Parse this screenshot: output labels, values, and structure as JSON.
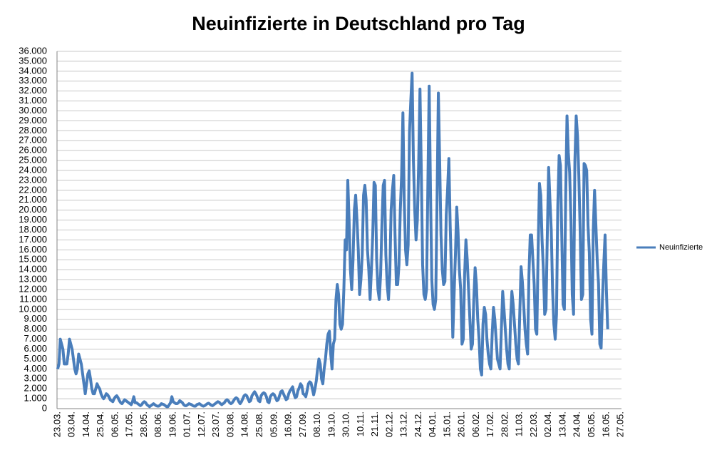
{
  "chart_data": {
    "type": "line",
    "title": "Neuinfizierte in Deutschland pro Tag",
    "categories": [
      "23.03.",
      null,
      null,
      null,
      null,
      null,
      null,
      null,
      null,
      null,
      null,
      "03.04.",
      null,
      null,
      null,
      null,
      null,
      null,
      null,
      null,
      null,
      null,
      "14.04.",
      null,
      null,
      null,
      null,
      null,
      null,
      null,
      null,
      null,
      null,
      "25.04.",
      null,
      null,
      null,
      null,
      null,
      null,
      null,
      null,
      null,
      null,
      "06.05.",
      null,
      null,
      null,
      null,
      null,
      null,
      null,
      null,
      null,
      null,
      "17.05.",
      null,
      null,
      null,
      null,
      null,
      null,
      null,
      null,
      null,
      null,
      "28.05.",
      null,
      null,
      null,
      null,
      null,
      null,
      null,
      null,
      null,
      null,
      "08.06.",
      null,
      null,
      null,
      null,
      null,
      null,
      null,
      null,
      null,
      null,
      "19.06.",
      null,
      null,
      null,
      null,
      null,
      null,
      null,
      null,
      null,
      null,
      "01.07.",
      null,
      null,
      null,
      null,
      null,
      null,
      null,
      null,
      null,
      null,
      "12.07.",
      null,
      null,
      null,
      null,
      null,
      null,
      null,
      null,
      null,
      null,
      "23.07.",
      null,
      null,
      null,
      null,
      null,
      null,
      null,
      null,
      null,
      null,
      "03.08.",
      null,
      null,
      null,
      null,
      null,
      null,
      null,
      null,
      null,
      null,
      "14.08.",
      null,
      null,
      null,
      null,
      null,
      null,
      null,
      null,
      null,
      null,
      "25.08.",
      null,
      null,
      null,
      null,
      null,
      null,
      null,
      null,
      null,
      null,
      "05.09.",
      null,
      null,
      null,
      null,
      null,
      null,
      null,
      null,
      null,
      null,
      "16.09.",
      null,
      null,
      null,
      null,
      null,
      null,
      null,
      null,
      null,
      null,
      "27.09.",
      null,
      null,
      null,
      null,
      null,
      null,
      null,
      null,
      null,
      null,
      "08.10.",
      null,
      null,
      null,
      null,
      null,
      null,
      null,
      null,
      null,
      null,
      "19.10.",
      null,
      null,
      null,
      null,
      null,
      null,
      null,
      null,
      null,
      null,
      "30.10.",
      null,
      null,
      null,
      null,
      null,
      null,
      null,
      null,
      null,
      null,
      "10.11.",
      null,
      null,
      null,
      null,
      null,
      null,
      null,
      null,
      null,
      null,
      "21.11.",
      null,
      null,
      null,
      null,
      null,
      null,
      null,
      null,
      null,
      null,
      "02.12.",
      null,
      null,
      null,
      null,
      null,
      null,
      null,
      null,
      null,
      null,
      "13.12.",
      null,
      null,
      null,
      null,
      null,
      null,
      null,
      null,
      null,
      null,
      "24.12.",
      null,
      null,
      null,
      null,
      null,
      null,
      null,
      null,
      null,
      null,
      "04.01.",
      null,
      null,
      null,
      null,
      null,
      null,
      null,
      null,
      null,
      null,
      "15.01.",
      null,
      null,
      null,
      null,
      null,
      null,
      null,
      null,
      null,
      null,
      "26.01.",
      null,
      null,
      null,
      null,
      null,
      null,
      null,
      null,
      null,
      null,
      "06.02.",
      null,
      null,
      null,
      null,
      null,
      null,
      null,
      null,
      null,
      null,
      "17.02.",
      null,
      null,
      null,
      null,
      null,
      null,
      null,
      null,
      null,
      null,
      "28.02.",
      null,
      null,
      null,
      null,
      null,
      null,
      null,
      null,
      null,
      null,
      "11.03.",
      null,
      null,
      null,
      null,
      null,
      null,
      null,
      null,
      null,
      null,
      "22.03.",
      null,
      null,
      null,
      null,
      null,
      null,
      null,
      null,
      null,
      null,
      "02.04.",
      null,
      null,
      null,
      null,
      null,
      null,
      null,
      null,
      null,
      null,
      "13.04.",
      null,
      null,
      null,
      null,
      null,
      null,
      null,
      null,
      null,
      null,
      "24.04.",
      null,
      null,
      null,
      null,
      null,
      null,
      null,
      null,
      null,
      null,
      "05.05.",
      null,
      null,
      null,
      null,
      null,
      null,
      null,
      null,
      null,
      null,
      "16.05.",
      null,
      null,
      null,
      null,
      null,
      null,
      null,
      null,
      null,
      null,
      "27.05."
    ],
    "series": [
      {
        "name": "Neuinfizierte",
        "color": "#4a7ebb",
        "values": [
          4000,
          4500,
          7000,
          6500,
          6000,
          4500,
          4500,
          4500,
          5500,
          7000,
          6500,
          6000,
          5000,
          4000,
          3500,
          4000,
          5500,
          5000,
          4500,
          3500,
          2500,
          1500,
          2500,
          3500,
          3800,
          3000,
          2000,
          1500,
          1500,
          2000,
          2500,
          2200,
          2000,
          1500,
          1200,
          1000,
          1200,
          1500,
          1400,
          1200,
          900,
          800,
          700,
          1000,
          1200,
          1300,
          1100,
          800,
          600,
          500,
          700,
          900,
          800,
          700,
          600,
          500,
          400,
          700,
          1200,
          600,
          600,
          500,
          400,
          300,
          400,
          600,
          700,
          600,
          400,
          300,
          200,
          300,
          400,
          500,
          400,
          300,
          250,
          250,
          350,
          500,
          450,
          400,
          300,
          200,
          200,
          400,
          600,
          1200,
          700,
          600,
          500,
          500,
          600,
          800,
          700,
          600,
          400,
          300,
          300,
          400,
          500,
          450,
          400,
          300,
          250,
          250,
          400,
          450,
          500,
          400,
          300,
          250,
          300,
          400,
          500,
          550,
          450,
          350,
          300,
          400,
          500,
          600,
          700,
          650,
          500,
          400,
          500,
          600,
          800,
          900,
          800,
          600,
          500,
          600,
          800,
          1000,
          1100,
          1000,
          700,
          500,
          700,
          1000,
          1300,
          1400,
          1300,
          1000,
          700,
          800,
          1300,
          1500,
          1700,
          1500,
          1200,
          800,
          700,
          1300,
          1500,
          1600,
          1500,
          1200,
          700,
          600,
          1200,
          1400,
          1500,
          1400,
          1100,
          800,
          900,
          1300,
          1700,
          1800,
          1500,
          1200,
          900,
          1000,
          1500,
          1800,
          2000,
          2200,
          1500,
          1100,
          1200,
          1800,
          2100,
          2500,
          2300,
          1500,
          1400,
          1200,
          1800,
          2500,
          2700,
          2600,
          2000,
          1400,
          2000,
          2800,
          4000,
          5000,
          4500,
          3000,
          2500,
          4000,
          5000,
          6500,
          7500,
          7800,
          5500,
          4000,
          6500,
          7000,
          11000,
          12500,
          11500,
          8500,
          8000,
          8500,
          12000,
          17000,
          16000,
          23000,
          19000,
          14000,
          12000,
          15000,
          20000,
          21500,
          19000,
          16000,
          11500,
          13000,
          15500,
          21500,
          22500,
          21000,
          16000,
          14000,
          11000,
          14000,
          17500,
          22800,
          22500,
          15000,
          12000,
          11000,
          13500,
          18500,
          22500,
          23000,
          15500,
          12500,
          11000,
          13500,
          20000,
          22000,
          23500,
          17500,
          12500,
          12500,
          14500,
          20000,
          23500,
          29800,
          21000,
          16000,
          14500,
          16500,
          27800,
          31000,
          33800,
          25000,
          20000,
          17000,
          19000,
          24700,
          32200,
          24000,
          14500,
          11500,
          11000,
          12000,
          22500,
          32500,
          22000,
          13000,
          10500,
          10000,
          11000,
          21000,
          31800,
          25000,
          17500,
          14000,
          12500,
          12800,
          19500,
          22000,
          25200,
          18500,
          13500,
          7200,
          11500,
          15500,
          20300,
          17800,
          14000,
          12000,
          6500,
          7000,
          13500,
          17000,
          15000,
          12000,
          9000,
          6000,
          6500,
          11000,
          14200,
          12500,
          9000,
          7000,
          4000,
          3400,
          8500,
          10200,
          9500,
          7000,
          5500,
          4500,
          4000,
          7500,
          10200,
          9000,
          7000,
          5000,
          4500,
          4000,
          8000,
          11800,
          10000,
          8000,
          6000,
          4500,
          4000,
          9000,
          11800,
          10500,
          8500,
          6500,
          5000,
          4500,
          9500,
          14300,
          12800,
          10500,
          8000,
          6500,
          5500,
          13500,
          17500,
          17500,
          15000,
          12500,
          8000,
          7500,
          15800,
          22700,
          21500,
          17000,
          14000,
          9500,
          10000,
          17500,
          24300,
          21000,
          18000,
          12000,
          8500,
          7000,
          9500,
          20500,
          25500,
          24500,
          17500,
          10500,
          10000,
          21500,
          29500,
          25800,
          23800,
          19000,
          11500,
          9500,
          24900,
          29500,
          27500,
          23500,
          18000,
          11000,
          11500,
          24700,
          24500,
          24000,
          18500,
          15700,
          9000,
          7500,
          18000,
          22000,
          18500,
          15000,
          12600,
          6500,
          6100,
          11000,
          14500,
          17500,
          12000,
          8000,
          null,
          null,
          null,
          null,
          null,
          null,
          null,
          null,
          null,
          null
        ]
      }
    ],
    "ylim": [
      0,
      36000
    ],
    "yticks": [
      0,
      {
        "value": 1000,
        "label": "1.000"
      },
      {
        "value": 2000,
        "label": "2.000"
      },
      {
        "value": 3000,
        "label": "3.000"
      },
      {
        "value": 4000,
        "label": "4.000"
      },
      {
        "value": 5000,
        "label": "5.000"
      },
      {
        "value": 6000,
        "label": "6.000"
      },
      {
        "value": 7000,
        "label": "7.000"
      },
      {
        "value": 8000,
        "label": "8.000"
      },
      {
        "value": 9000,
        "label": "9.000"
      },
      {
        "value": 10000,
        "label": "10.000"
      },
      {
        "value": 11000,
        "label": "11.000"
      },
      {
        "value": 12000,
        "label": "12.000"
      },
      {
        "value": 13000,
        "label": "13.000"
      },
      {
        "value": 14000,
        "label": "14.000"
      },
      {
        "value": 15000,
        "label": "15.000"
      },
      {
        "value": 16000,
        "label": "16.000"
      },
      {
        "value": 17000,
        "label": "17.000"
      },
      {
        "value": 18000,
        "label": "18.000"
      },
      {
        "value": 19000,
        "label": "19.000"
      },
      {
        "value": 20000,
        "label": "20.000"
      },
      {
        "value": 21000,
        "label": "21.000"
      },
      {
        "value": 22000,
        "label": "22.000"
      },
      {
        "value": 23000,
        "label": "23.000"
      },
      {
        "value": 24000,
        "label": "24.000"
      },
      {
        "value": 25000,
        "label": "25.000"
      },
      {
        "value": 26000,
        "label": "26.000"
      },
      {
        "value": 27000,
        "label": "27.000"
      },
      {
        "value": 28000,
        "label": "28.000"
      },
      {
        "value": 29000,
        "label": "29.000"
      },
      {
        "value": 30000,
        "label": "30.000"
      },
      {
        "value": 31000,
        "label": "31.000"
      },
      {
        "value": 32000,
        "label": "32.000"
      },
      {
        "value": 33000,
        "label": "33.000"
      },
      {
        "value": 34000,
        "label": "34.000"
      },
      {
        "value": 35000,
        "label": "35.000"
      },
      {
        "value": 36000,
        "label": "36.000"
      }
    ],
    "grid": true,
    "legend": "right"
  }
}
